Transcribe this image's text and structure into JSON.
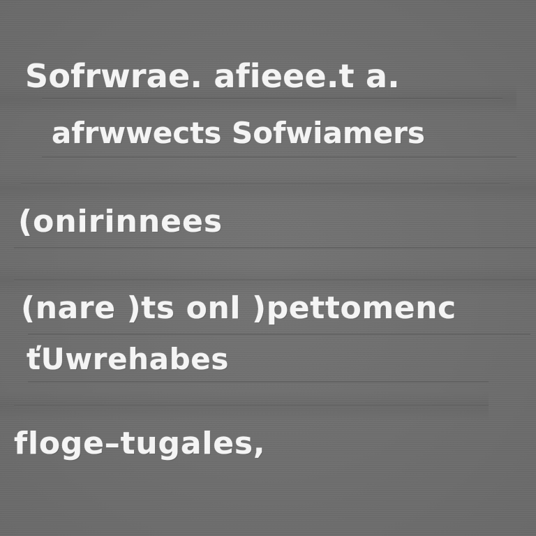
{
  "lines": [
    "Sofrwrae. afieee.t a.",
    "afrwwects Sofwiamers",
    "(onirinnees",
    "(nare  )ts onl )pettomenc",
    "ťUwrehabes",
    "floge–tugales,"
  ],
  "colors": {
    "background": "#6e6e6e",
    "text": "#f4f4f4"
  }
}
